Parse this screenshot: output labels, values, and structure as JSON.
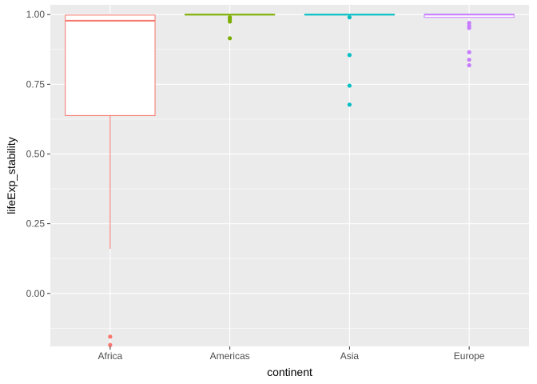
{
  "chart_data": {
    "type": "boxplot",
    "title": "",
    "xlabel": "continent",
    "ylabel": "lifeExp_stability",
    "ylim": [
      -0.19,
      1.035
    ],
    "y_ticks": [
      0.0,
      0.25,
      0.5,
      0.75,
      1.0
    ],
    "y_tick_labels": [
      "0.00",
      "0.25",
      "0.50",
      "0.75",
      "1.00"
    ],
    "grid": true,
    "legend": "none",
    "panel_background": "#EBEBEB",
    "grid_color": "#FFFFFF",
    "categories": [
      "Africa",
      "Americas",
      "Asia",
      "Europe"
    ],
    "series": [
      {
        "category": "Africa",
        "color": "#F8766D",
        "whisker_low": 0.16,
        "q1": 0.638,
        "median": 0.978,
        "q3": 0.998,
        "whisker_high": 1.0,
        "outliers": [
          -0.155,
          -0.185
        ]
      },
      {
        "category": "Americas",
        "color": "#7CAE00",
        "whisker_low": 0.998,
        "q1": 0.999,
        "median": 1.0,
        "q3": 1.0,
        "whisker_high": 1.0,
        "outliers": [
          0.99,
          0.983,
          0.975,
          0.915
        ]
      },
      {
        "category": "Asia",
        "color": "#00BFC4",
        "whisker_low": 0.998,
        "q1": 0.999,
        "median": 1.0,
        "q3": 1.0,
        "whisker_high": 1.0,
        "outliers": [
          0.99,
          0.855,
          0.745,
          0.677
        ]
      },
      {
        "category": "Europe",
        "color": "#C77CFF",
        "whisker_low": 0.99,
        "q1": 0.99,
        "median": 1.0,
        "q3": 1.001,
        "whisker_high": 1.003,
        "outliers": [
          0.97,
          0.96,
          0.952,
          0.865,
          0.838,
          0.818
        ]
      }
    ]
  }
}
